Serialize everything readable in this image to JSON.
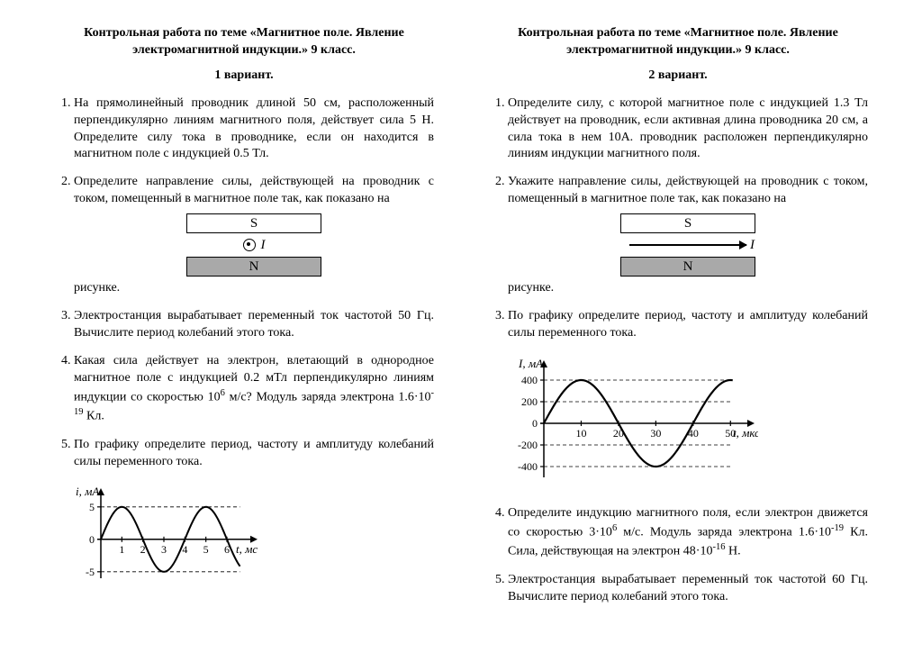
{
  "shared": {
    "title_line1": "Контрольная работа по  теме «Магнитное поле. Явление",
    "title_line2": "электромагнитной индукции.» 9 класс."
  },
  "left": {
    "variant": "1 вариант.",
    "p1": "На прямолинейный проводник длиной 50 см, расположенный перпендикулярно линиям магнитного поля, действует сила 5 Н. Определите силу тока в проводнике, если  он находится в магнитном поле с индукцией 0.5 Тл.",
    "p2": "Определите направление силы, действующей на проводник с током, помещенный в магнитное поле так, как показано на",
    "p2_after": "рисунке.",
    "magnet": {
      "top_label": "S",
      "bottom_label": "N",
      "mid_label": "I"
    },
    "p3": "Электростанция вырабатывает переменный ток частотой 50 Гц. Вычислите период колебаний этого тока.",
    "p4_a": "Какая сила действует на электрон, влетающий в однородное магнитное поле с индукцией 0.2 мТл перпендикулярно линиям индукции со скоростью 10",
    "p4_exp1": "6",
    "p4_b": " м/с? Модуль заряда электрона 1.6·10",
    "p4_exp2": "-19",
    "p4_c": " Кл.",
    "p5": "По графику определите период, частоту и амплитуду колебаний силы переменного тока.",
    "chart": {
      "type": "line",
      "ylabel": "i, мА",
      "xlabel": "t, мс",
      "ylim": [
        -6,
        6.5
      ],
      "xlim": [
        0,
        7.2
      ],
      "yticks": [
        -5,
        0,
        5
      ],
      "xticks": [
        1,
        2,
        3,
        4,
        5,
        6
      ],
      "amplitude": 5,
      "period": 4,
      "line_color": "#000000",
      "line_width": 2,
      "background": "#ffffff",
      "tick_fontsize": 12,
      "label_fontsize": 13
    }
  },
  "right": {
    "variant": "2 вариант.",
    "p1": "Определите силу, с которой магнитное поле с индукцией 1.3 Тл действует на проводник, если активная длина проводника 20 см, а сила тока в нем 10А. проводник расположен перпендикулярно линиям индукции магнитного поля.",
    "p2": "Укажите направление силы, действующей на проводник с током, помещенный в магнитное поле так, как показано на",
    "p2_after": "рисунке.",
    "magnet": {
      "top_label": "S",
      "bottom_label": "N",
      "mid_label": "I"
    },
    "p3": "По графику определите период, частоту и амплитуду колебаний силы переменного тока.",
    "chart": {
      "type": "line",
      "ylabel": "I, мА",
      "xlabel": "t, мкс",
      "ylim": [
        -500,
        500
      ],
      "xlim": [
        0,
        55
      ],
      "yticks": [
        -400,
        -200,
        0,
        200,
        400
      ],
      "xticks": [
        10,
        20,
        30,
        40,
        50
      ],
      "amplitude": 400,
      "period": 40,
      "line_color": "#000000",
      "line_width": 2.2,
      "background": "#ffffff",
      "tick_fontsize": 12,
      "label_fontsize": 13
    },
    "p4_a": "Определите индукцию магнитного поля, если электрон движется со скоростью 3·10",
    "p4_exp1": "6",
    "p4_b": " м/с. Модуль заряда электрона 1.6·10",
    "p4_exp2": "-19",
    "p4_c": " Кл. Сила, действующая на электрон 48·10",
    "p4_exp3": "-16",
    "p4_d": " Н.",
    "p5": "Электростанция вырабатывает переменный ток частотой 60 Гц. Вычислите период колебаний этого тока."
  }
}
